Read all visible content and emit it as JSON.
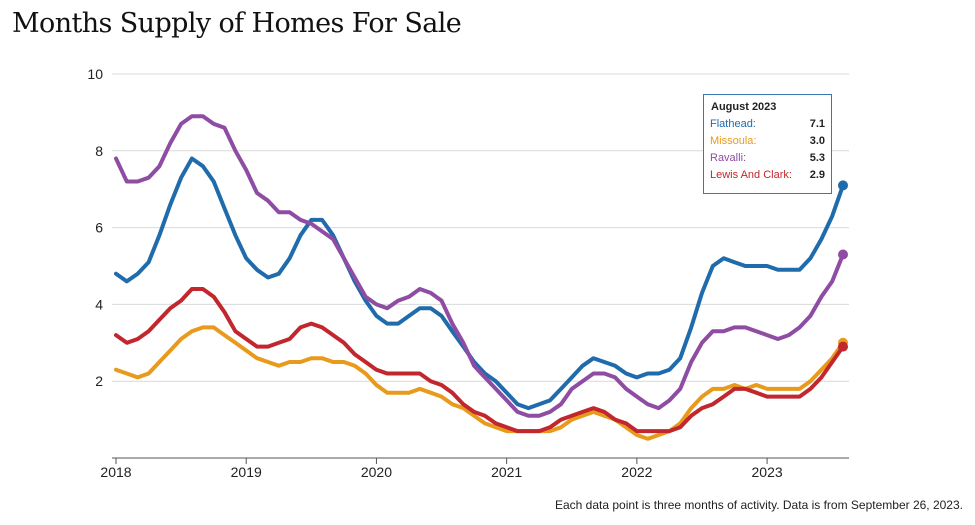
{
  "title": "Months Supply of Homes For Sale",
  "footnote": "Each data point is three months of activity. Data is from September 26, 2023.",
  "chart_data": {
    "type": "line",
    "title": "Months Supply of Homes For Sale",
    "xlabel": "",
    "ylabel": "",
    "xlim": [
      2018,
      2023.67
    ],
    "ylim": [
      0,
      10
    ],
    "yticks": [
      2,
      4,
      6,
      8,
      10
    ],
    "xticks": [
      "2018",
      "2019",
      "2020",
      "2021",
      "2022",
      "2023"
    ],
    "grid": true,
    "tooltip": {
      "title": "August 2023",
      "rows": [
        {
          "name": "Flathead:",
          "value": "7.1",
          "color": "#1f6bab"
        },
        {
          "name": "Missoula:",
          "value": "3.0",
          "color": "#e89a1c"
        },
        {
          "name": "Ravalli:",
          "value": "5.3",
          "color": "#8e4ca3"
        },
        {
          "name": "Lewis And Clark:",
          "value": "2.9",
          "color": "#c1272d"
        }
      ]
    },
    "x": [
      2018.0,
      2018.083,
      2018.167,
      2018.25,
      2018.333,
      2018.417,
      2018.5,
      2018.583,
      2018.667,
      2018.75,
      2018.833,
      2018.917,
      2019.0,
      2019.083,
      2019.167,
      2019.25,
      2019.333,
      2019.417,
      2019.5,
      2019.583,
      2019.667,
      2019.75,
      2019.833,
      2019.917,
      2020.0,
      2020.083,
      2020.167,
      2020.25,
      2020.333,
      2020.417,
      2020.5,
      2020.583,
      2020.667,
      2020.75,
      2020.833,
      2020.917,
      2021.0,
      2021.083,
      2021.167,
      2021.25,
      2021.333,
      2021.417,
      2021.5,
      2021.583,
      2021.667,
      2021.75,
      2021.833,
      2021.917,
      2022.0,
      2022.083,
      2022.167,
      2022.25,
      2022.333,
      2022.417,
      2022.5,
      2022.583,
      2022.667,
      2022.75,
      2022.833,
      2022.917,
      2023.0,
      2023.083,
      2023.167,
      2023.25,
      2023.333,
      2023.417,
      2023.5,
      2023.583
    ],
    "series": [
      {
        "name": "Flathead",
        "color": "#1f6bab",
        "values": [
          4.8,
          4.6,
          4.8,
          5.1,
          5.8,
          6.6,
          7.3,
          7.8,
          7.6,
          7.2,
          6.5,
          5.8,
          5.2,
          4.9,
          4.7,
          4.8,
          5.2,
          5.8,
          6.2,
          6.2,
          5.8,
          5.2,
          4.6,
          4.1,
          3.7,
          3.5,
          3.5,
          3.7,
          3.9,
          3.9,
          3.7,
          3.3,
          2.9,
          2.5,
          2.2,
          2.0,
          1.7,
          1.4,
          1.3,
          1.4,
          1.5,
          1.8,
          2.1,
          2.4,
          2.6,
          2.5,
          2.4,
          2.2,
          2.1,
          2.2,
          2.2,
          2.3,
          2.6,
          3.4,
          4.3,
          5.0,
          5.2,
          5.1,
          5.0,
          5.0,
          5.0,
          4.9,
          4.9,
          4.9,
          5.2,
          5.7,
          6.3,
          7.1
        ]
      },
      {
        "name": "Missoula",
        "color": "#e89a1c",
        "values": [
          2.3,
          2.2,
          2.1,
          2.2,
          2.5,
          2.8,
          3.1,
          3.3,
          3.4,
          3.4,
          3.2,
          3.0,
          2.8,
          2.6,
          2.5,
          2.4,
          2.5,
          2.5,
          2.6,
          2.6,
          2.5,
          2.5,
          2.4,
          2.2,
          1.9,
          1.7,
          1.7,
          1.7,
          1.8,
          1.7,
          1.6,
          1.4,
          1.3,
          1.1,
          0.9,
          0.8,
          0.7,
          0.7,
          0.7,
          0.7,
          0.7,
          0.8,
          1.0,
          1.1,
          1.2,
          1.1,
          1.0,
          0.8,
          0.6,
          0.5,
          0.6,
          0.7,
          0.9,
          1.3,
          1.6,
          1.8,
          1.8,
          1.9,
          1.8,
          1.9,
          1.8,
          1.8,
          1.8,
          1.8,
          2.0,
          2.3,
          2.6,
          3.0
        ]
      },
      {
        "name": "Ravalli",
        "color": "#8e4ca3",
        "values": [
          7.8,
          7.2,
          7.2,
          7.3,
          7.6,
          8.2,
          8.7,
          8.9,
          8.9,
          8.7,
          8.6,
          8.0,
          7.5,
          6.9,
          6.7,
          6.4,
          6.4,
          6.2,
          6.1,
          5.9,
          5.7,
          5.2,
          4.7,
          4.2,
          4.0,
          3.9,
          4.1,
          4.2,
          4.4,
          4.3,
          4.1,
          3.5,
          3.0,
          2.4,
          2.1,
          1.8,
          1.5,
          1.2,
          1.1,
          1.1,
          1.2,
          1.4,
          1.8,
          2.0,
          2.2,
          2.2,
          2.1,
          1.8,
          1.6,
          1.4,
          1.3,
          1.5,
          1.8,
          2.5,
          3.0,
          3.3,
          3.3,
          3.4,
          3.4,
          3.3,
          3.2,
          3.1,
          3.2,
          3.4,
          3.7,
          4.2,
          4.6,
          5.3
        ]
      },
      {
        "name": "Lewis And Clark",
        "color": "#c1272d",
        "values": [
          3.2,
          3.0,
          3.1,
          3.3,
          3.6,
          3.9,
          4.1,
          4.4,
          4.4,
          4.2,
          3.8,
          3.3,
          3.1,
          2.9,
          2.9,
          3.0,
          3.1,
          3.4,
          3.5,
          3.4,
          3.2,
          3.0,
          2.7,
          2.5,
          2.3,
          2.2,
          2.2,
          2.2,
          2.2,
          2.0,
          1.9,
          1.7,
          1.4,
          1.2,
          1.1,
          0.9,
          0.8,
          0.7,
          0.7,
          0.7,
          0.8,
          1.0,
          1.1,
          1.2,
          1.3,
          1.2,
          1.0,
          0.9,
          0.7,
          0.7,
          0.7,
          0.7,
          0.8,
          1.1,
          1.3,
          1.4,
          1.6,
          1.8,
          1.8,
          1.7,
          1.6,
          1.6,
          1.6,
          1.6,
          1.8,
          2.1,
          2.5,
          2.9
        ]
      }
    ]
  }
}
